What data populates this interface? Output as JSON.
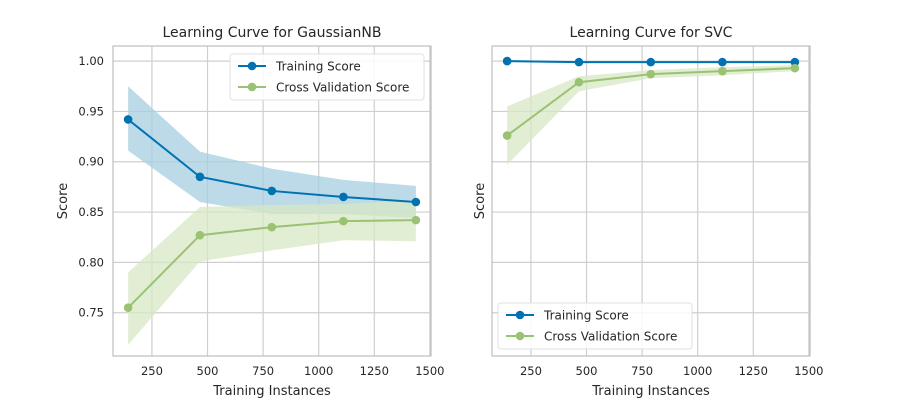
{
  "chart_data": [
    {
      "type": "line",
      "title": "Learning Curve for GaussianNB",
      "xlabel": "Training Instances",
      "ylabel": "Score",
      "xlim": [
        75,
        1505
      ],
      "ylim": [
        0.707,
        1.015
      ],
      "xticks": [
        250,
        500,
        750,
        1000,
        1250,
        1500
      ],
      "yticks": [
        0.75,
        0.8,
        0.85,
        0.9,
        0.95,
        1.0
      ],
      "ytick_labels": [
        "0.75",
        "0.80",
        "0.85",
        "0.90",
        "0.95",
        "1.00"
      ],
      "show_yticklabels": true,
      "grid": true,
      "legend": "top-right",
      "x": [
        143,
        466,
        789,
        1111,
        1437
      ],
      "series": [
        {
          "name": "Training Score",
          "color": "#0072B2",
          "band_color": "#a5cde0",
          "values": [
            0.942,
            0.885,
            0.871,
            0.865,
            0.86
          ],
          "upper": [
            0.975,
            0.91,
            0.893,
            0.882,
            0.876
          ],
          "lower": [
            0.911,
            0.86,
            0.848,
            0.848,
            0.844
          ]
        },
        {
          "name": "Cross Validation Score",
          "color": "#9BC272",
          "band_color": "#d8e8c6",
          "values": [
            0.755,
            0.827,
            0.835,
            0.841,
            0.842
          ],
          "upper": [
            0.79,
            0.855,
            0.857,
            0.858,
            0.862
          ],
          "lower": [
            0.718,
            0.801,
            0.812,
            0.822,
            0.821
          ]
        }
      ]
    },
    {
      "type": "line",
      "title": "Learning Curve for SVC",
      "xlabel": "Training Instances",
      "ylabel": "Score",
      "xlim": [
        75,
        1505
      ],
      "ylim": [
        0.707,
        1.015
      ],
      "xticks": [
        250,
        500,
        750,
        1000,
        1250,
        1500
      ],
      "yticks": [
        0.75,
        0.8,
        0.85,
        0.9,
        0.95,
        1.0
      ],
      "ytick_labels": [
        "0.75",
        "0.80",
        "0.85",
        "0.90",
        "0.95",
        "1.00"
      ],
      "show_yticklabels": false,
      "grid": true,
      "legend": "bottom-left",
      "x": [
        143,
        466,
        789,
        1111,
        1437
      ],
      "series": [
        {
          "name": "Training Score",
          "color": "#0072B2",
          "band_color": "#a5cde0",
          "values": [
            1.0,
            0.999,
            0.999,
            0.999,
            0.999
          ],
          "upper": [
            1.001,
            1.0,
            1.0,
            1.0,
            1.0
          ],
          "lower": [
            0.999,
            0.998,
            0.998,
            0.998,
            0.998
          ]
        },
        {
          "name": "Cross Validation Score",
          "color": "#9BC272",
          "band_color": "#d8e8c6",
          "values": [
            0.926,
            0.979,
            0.987,
            0.99,
            0.993
          ],
          "upper": [
            0.955,
            0.985,
            0.991,
            0.994,
            0.996
          ],
          "lower": [
            0.897,
            0.97,
            0.983,
            0.986,
            0.99
          ]
        }
      ]
    }
  ]
}
